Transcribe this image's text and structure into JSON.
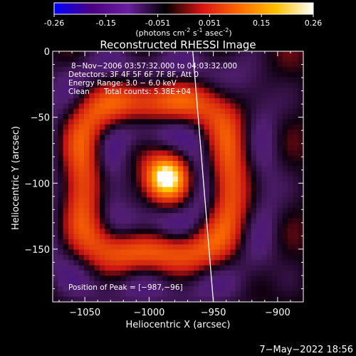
{
  "colorbar": {
    "ticks": [
      "-0.26",
      "-0.15",
      "-0.051",
      "0.051",
      "0.15",
      "0.26"
    ],
    "units_prefix": "(photons cm",
    "units_exp1": "-2",
    "units_mid": " s",
    "units_exp2": "-1",
    "units_mid2": " asec",
    "units_exp3": "-2",
    "units_suffix": ")",
    "colors": [
      "#0000ff",
      "#4b0082",
      "#6a1fa0",
      "#000000",
      "#d91414",
      "#ff6a00",
      "#ffc000",
      "#ffffff"
    ]
  },
  "chart_data": {
    "type": "heatmap",
    "title": "Reconstructed RHESSI Image",
    "xlabel": "Heliocentric X (arcsec)",
    "ylabel": "Heliocentric Y (arcsec)",
    "xlim": [
      -1075,
      -880
    ],
    "ylim": [
      -190,
      0
    ],
    "xticks": [
      -1050,
      -1000,
      -950,
      -900
    ],
    "xtick_labels": [
      "−1050",
      "−1000",
      "−950",
      "−900"
    ],
    "yticks": [
      0,
      -50,
      -100,
      -150
    ],
    "ytick_labels": [
      "0",
      "−50",
      "−100",
      "−150"
    ],
    "value_range": [
      -0.26,
      0.26
    ],
    "peak": {
      "x": -987,
      "y": -96
    },
    "limb_line": [
      [
        -966,
        0
      ],
      [
        -950,
        -190
      ]
    ],
    "annotations": {
      "time_range": "8−Nov−2006 03:57:32.000 to 04:03:32.000",
      "detectors": "Detectors: 3F 4F 5F 6F 7F 8F, Att 0",
      "energy_range": "Energy Range: 3.0 − 6.0 keV",
      "clean_label": "Clean",
      "total_counts": "Total counts: 5.38E+04",
      "peak_position": "Position of Peak = [−987,−96]"
    }
  },
  "footer": {
    "date": "7−May−2022 18:56"
  }
}
